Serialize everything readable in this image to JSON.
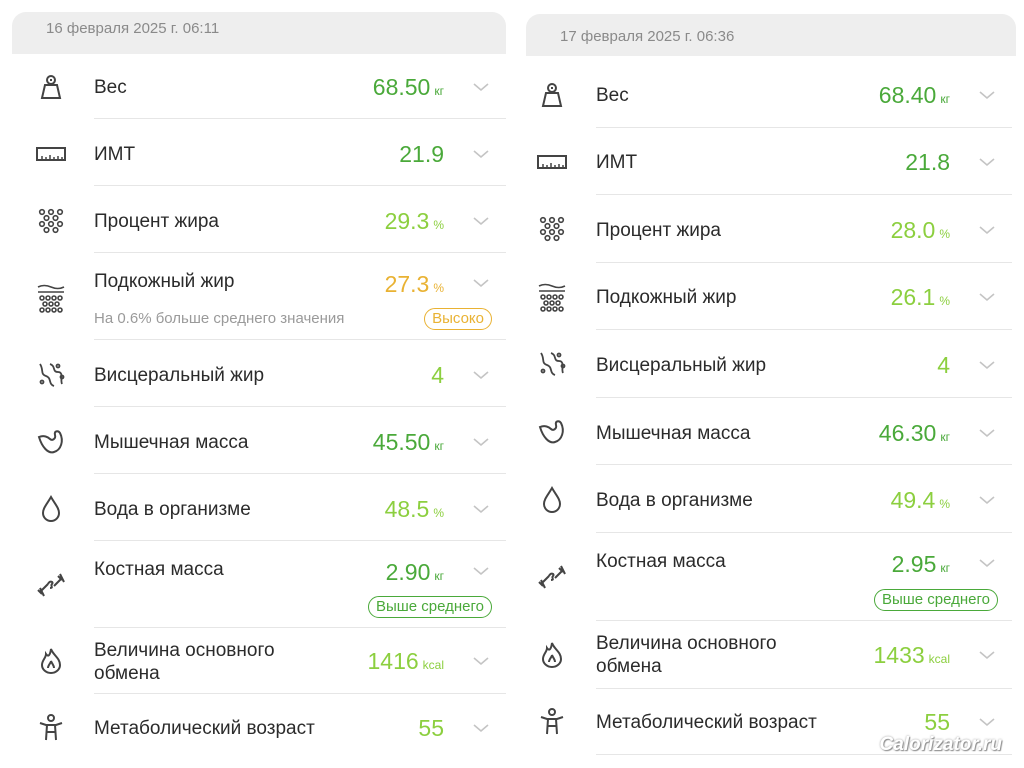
{
  "left": {
    "date": "16 февраля 2025 г. 06:11",
    "rows": [
      {
        "label": "Вес",
        "value": "68.50",
        "unit": "кг",
        "icon": "scale-icon"
      },
      {
        "label": "ИМТ",
        "value": "21.9",
        "unit": "",
        "icon": "ruler-icon"
      },
      {
        "label": "Процент жира",
        "value": "29.3",
        "unit": "%",
        "icon": "dots-grid-icon"
      },
      {
        "label": "Подкожный жир",
        "value": "27.3",
        "unit": "%",
        "icon": "subcutaneous-fat-icon",
        "note": "На 0.6% больше среднего значения",
        "badge": "Высоко"
      },
      {
        "label": "Висцеральный жир",
        "value": "4",
        "unit": "",
        "icon": "visceral-fat-icon"
      },
      {
        "label": "Мышечная масса",
        "value": "45.50",
        "unit": "кг",
        "icon": "muscle-icon"
      },
      {
        "label": "Вода в организме",
        "value": "48.5",
        "unit": "%",
        "icon": "water-drop-icon"
      },
      {
        "label": "Костная масса",
        "value": "2.90",
        "unit": "кг",
        "icon": "bone-icon",
        "badge": "Выше среднего"
      },
      {
        "label": "Величина основного",
        "label2": "обмена",
        "value": "1416",
        "unit": "kcal",
        "icon": "flame-icon"
      },
      {
        "label": "Метаболический возраст",
        "value": "55",
        "unit": "",
        "icon": "person-icon"
      }
    ]
  },
  "right": {
    "date": "17 февраля 2025 г. 06:36",
    "rows": [
      {
        "label": "Вес",
        "value": "68.40",
        "unit": "кг",
        "icon": "scale-icon"
      },
      {
        "label": "ИМТ",
        "value": "21.8",
        "unit": "",
        "icon": "ruler-icon"
      },
      {
        "label": "Процент жира",
        "value": "28.0",
        "unit": "%",
        "icon": "dots-grid-icon"
      },
      {
        "label": "Подкожный жир",
        "value": "26.1",
        "unit": "%",
        "icon": "subcutaneous-fat-icon"
      },
      {
        "label": "Висцеральный жир",
        "value": "4",
        "unit": "",
        "icon": "visceral-fat-icon"
      },
      {
        "label": "Мышечная масса",
        "value": "46.30",
        "unit": "кг",
        "icon": "muscle-icon"
      },
      {
        "label": "Вода в организме",
        "value": "49.4",
        "unit": "%",
        "icon": "water-drop-icon"
      },
      {
        "label": "Костная масса",
        "value": "2.95",
        "unit": "кг",
        "icon": "bone-icon",
        "badge": "Выше среднего"
      },
      {
        "label": "Величина основного",
        "label2": "обмена",
        "value": "1433",
        "unit": "kcal",
        "icon": "flame-icon"
      },
      {
        "label": "Метаболический возраст",
        "value": "55",
        "unit": "",
        "icon": "person-icon"
      }
    ]
  },
  "colors": {
    "green": "#4aa93a",
    "light_green": "#8ccf3f",
    "orange": "#e9b233"
  },
  "watermark": "Calorizator.ru"
}
